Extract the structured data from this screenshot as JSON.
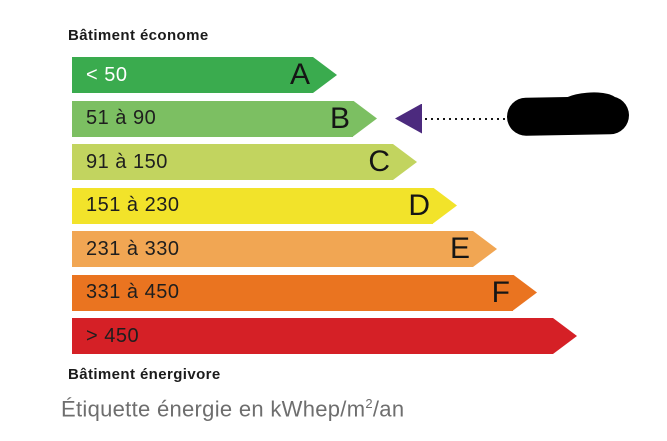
{
  "header": {
    "top_label": "Bâtiment économe",
    "bottom_label": "Bâtiment énergivore"
  },
  "caption": {
    "prefix": "Étiquette énergie en kWhep/m",
    "superscript": "2",
    "suffix": "/an"
  },
  "chart_data": {
    "type": "bar",
    "title": "Étiquette énergie",
    "unit": "kWhep/m²/an",
    "orientation": "horizontal",
    "top_axis_label": "Bâtiment économe",
    "bottom_axis_label": "Bâtiment énergivore",
    "classes": [
      {
        "letter": "A",
        "range": "< 50",
        "min": 0,
        "max": 50,
        "color": "#3aab4e",
        "range_text_color": "#ffffff",
        "body_width": 241
      },
      {
        "letter": "B",
        "range": "51 à 90",
        "min": 51,
        "max": 90,
        "color": "#7cbf62",
        "range_text_color": "#1e1e1e",
        "body_width": 281
      },
      {
        "letter": "C",
        "range": "91 à 150",
        "min": 91,
        "max": 150,
        "color": "#c2d45f",
        "range_text_color": "#1e1e1e",
        "body_width": 321
      },
      {
        "letter": "D",
        "range": "151 à 230",
        "min": 151,
        "max": 230,
        "color": "#f2e32a",
        "range_text_color": "#1e1e1e",
        "body_width": 361
      },
      {
        "letter": "E",
        "range": "231 à 330",
        "min": 231,
        "max": 330,
        "color": "#f1a653",
        "range_text_color": "#1e1e1e",
        "body_width": 401
      },
      {
        "letter": "F",
        "range": "331 à 450",
        "min": 331,
        "max": 450,
        "color": "#ea7420",
        "range_text_color": "#1e1e1e",
        "body_width": 441
      },
      {
        "letter": "",
        "range": "> 450",
        "min": 451,
        "max": null,
        "color": "#d52026",
        "range_text_color": "#1e1e1e",
        "body_width": 481
      }
    ],
    "selected": {
      "class": "B",
      "indicator_color": "#4c2a7e",
      "value_redacted": true
    }
  }
}
